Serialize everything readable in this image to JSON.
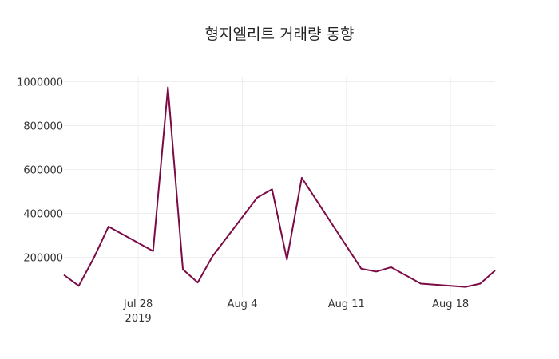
{
  "chart_data": {
    "type": "line",
    "title": "형지엘리트 거래량 동향",
    "xlabel": "",
    "ylabel": "",
    "x_ticks": [
      {
        "date": "2019-07-28",
        "label": "Jul 28",
        "sub": "2019"
      },
      {
        "date": "2019-08-04",
        "label": "Aug 4",
        "sub": ""
      },
      {
        "date": "2019-08-11",
        "label": "Aug 11",
        "sub": ""
      },
      {
        "date": "2019-08-18",
        "label": "Aug 18",
        "sub": ""
      }
    ],
    "y_ticks": [
      200000,
      400000,
      600000,
      800000,
      1000000
    ],
    "xlim": [
      "2019-07-23",
      "2019-08-21"
    ],
    "ylim": [
      20000,
      1020000
    ],
    "grid": true,
    "color": "#7b0a45",
    "series": [
      {
        "name": "",
        "x": [
          "2019-07-23",
          "2019-07-24",
          "2019-07-25",
          "2019-07-26",
          "2019-07-29",
          "2019-07-30",
          "2019-07-31",
          "2019-08-01",
          "2019-08-02",
          "2019-08-05",
          "2019-08-06",
          "2019-08-07",
          "2019-08-08",
          "2019-08-12",
          "2019-08-13",
          "2019-08-14",
          "2019-08-16",
          "2019-08-19",
          "2019-08-20",
          "2019-08-21"
        ],
        "y": [
          120000,
          70000,
          195000,
          340000,
          228000,
          975000,
          145000,
          85000,
          205000,
          472000,
          510000,
          190000,
          562000,
          148000,
          135000,
          155000,
          80000,
          65000,
          80000,
          140000
        ]
      }
    ]
  }
}
